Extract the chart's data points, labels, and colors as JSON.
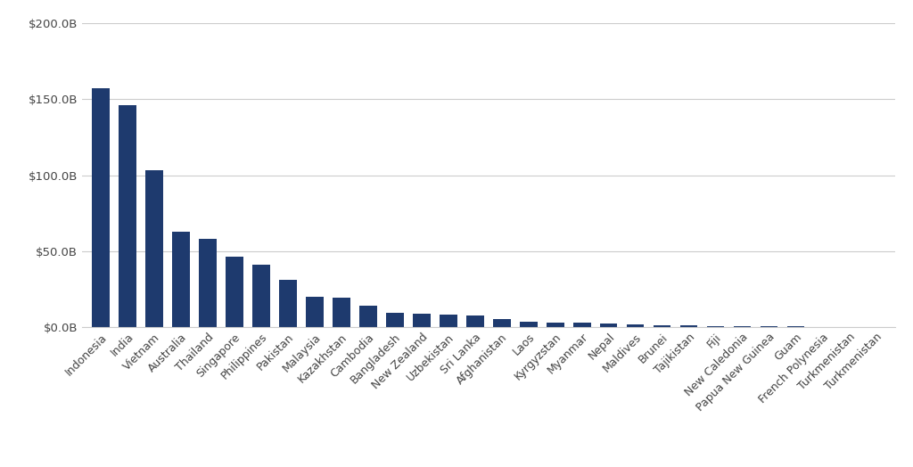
{
  "categories": [
    "Indonesia",
    "India",
    "Vietnam",
    "Australia",
    "Thailand",
    "Singapore",
    "Philippines",
    "Pakistan",
    "Malaysia",
    "Kazakhstan",
    "Cambodia",
    "Bangladesh",
    "New Zealand",
    "Uzbekistan",
    "Sri Lanka",
    "Afghanistan",
    "Laos",
    "Kyrgyzstan",
    "Myanmar",
    "Nepal",
    "Maldives",
    "Brunei",
    "Tajikistan",
    "Fiji",
    "New Caledonia",
    "Papua New Guinea",
    "Guam",
    "French Polynesia",
    "Turkmenistan",
    "Turkmenistan"
  ],
  "values": [
    157,
    146,
    103,
    63,
    58,
    46,
    41,
    31,
    20,
    19,
    14,
    9.5,
    8.5,
    8.0,
    7.5,
    5.0,
    3.5,
    3.0,
    2.8,
    2.2,
    1.8,
    1.2,
    1.0,
    0.4,
    0.3,
    0.25,
    0.2,
    0.15,
    0.1,
    0.05
  ],
  "bar_color": "#1e3a6e",
  "background_color": "#ffffff",
  "grid_color": "#cccccc",
  "ytick_labels": [
    "$0.0B",
    "$50.0B",
    "$100.0B",
    "$150.0B",
    "$200.0B"
  ],
  "ytick_values": [
    0,
    50,
    100,
    150,
    200
  ],
  "ylim": [
    0,
    200
  ],
  "tick_fontsize": 9.5,
  "xlabel_fontsize": 9
}
